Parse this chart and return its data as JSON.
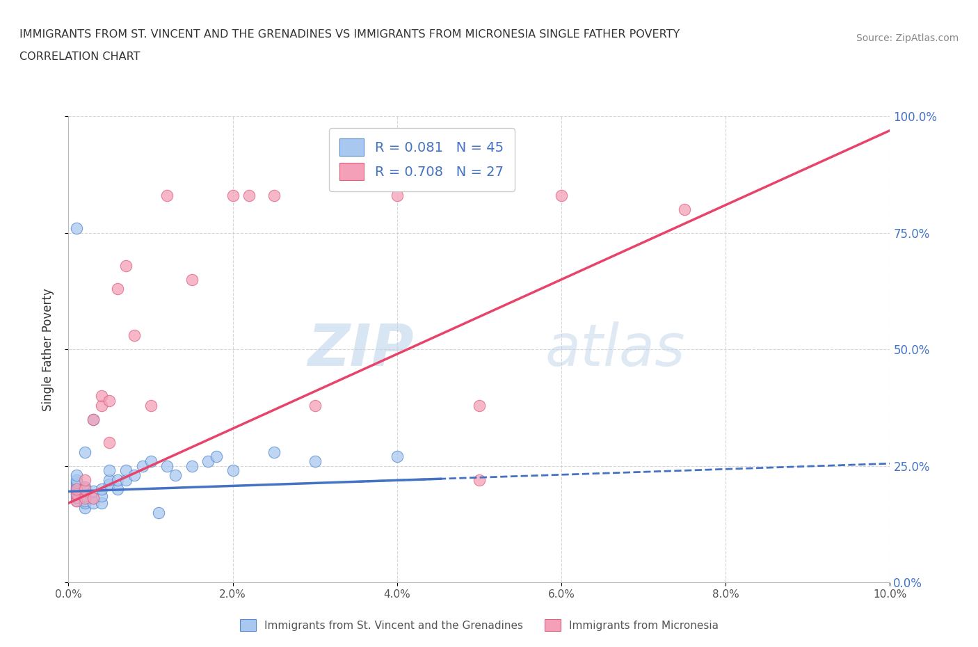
{
  "title_line1": "IMMIGRANTS FROM ST. VINCENT AND THE GRENADINES VS IMMIGRANTS FROM MICRONESIA SINGLE FATHER POVERTY",
  "title_line2": "CORRELATION CHART",
  "source_text": "Source: ZipAtlas.com",
  "ylabel": "Single Father Poverty",
  "watermark_zip": "ZIP",
  "watermark_atlas": "atlas",
  "xlim": [
    0.0,
    0.1
  ],
  "ylim": [
    0.0,
    1.0
  ],
  "xticks": [
    0.0,
    0.02,
    0.04,
    0.06,
    0.08,
    0.1
  ],
  "xtick_labels": [
    "0.0%",
    "2.0%",
    "4.0%",
    "6.0%",
    "8.0%",
    "10.0%"
  ],
  "yticks": [
    0.0,
    0.25,
    0.5,
    0.75,
    1.0
  ],
  "ytick_labels": [
    "0.0%",
    "25.0%",
    "50.0%",
    "75.0%",
    "100.0%"
  ],
  "blue_fill": "#A8C8F0",
  "pink_fill": "#F4A0B8",
  "blue_edge": "#5588CC",
  "pink_edge": "#E06080",
  "blue_line_color": "#4472C4",
  "pink_line_color": "#E8436A",
  "R_blue": 0.081,
  "N_blue": 45,
  "R_pink": 0.708,
  "N_pink": 27,
  "legend_label_blue": "Immigrants from St. Vincent and the Grenadines",
  "legend_label_pink": "Immigrants from Micronesia",
  "blue_scatter_x": [
    0.001,
    0.001,
    0.001,
    0.001,
    0.001,
    0.001,
    0.001,
    0.001,
    0.001,
    0.001,
    0.002,
    0.002,
    0.002,
    0.002,
    0.002,
    0.002,
    0.002,
    0.003,
    0.003,
    0.003,
    0.003,
    0.004,
    0.004,
    0.004,
    0.005,
    0.005,
    0.005,
    0.006,
    0.006,
    0.007,
    0.007,
    0.008,
    0.009,
    0.01,
    0.011,
    0.012,
    0.013,
    0.015,
    0.017,
    0.018,
    0.02,
    0.025,
    0.03,
    0.04,
    0.001
  ],
  "blue_scatter_y": [
    0.175,
    0.182,
    0.19,
    0.195,
    0.2,
    0.205,
    0.21,
    0.215,
    0.22,
    0.23,
    0.16,
    0.17,
    0.175,
    0.185,
    0.195,
    0.205,
    0.28,
    0.17,
    0.18,
    0.195,
    0.35,
    0.17,
    0.185,
    0.2,
    0.21,
    0.22,
    0.24,
    0.2,
    0.22,
    0.22,
    0.24,
    0.23,
    0.25,
    0.26,
    0.15,
    0.25,
    0.23,
    0.25,
    0.26,
    0.27,
    0.24,
    0.28,
    0.26,
    0.27,
    0.76
  ],
  "pink_scatter_x": [
    0.001,
    0.001,
    0.001,
    0.002,
    0.002,
    0.002,
    0.003,
    0.003,
    0.004,
    0.004,
    0.005,
    0.005,
    0.006,
    0.007,
    0.008,
    0.01,
    0.012,
    0.015,
    0.02,
    0.022,
    0.025,
    0.03,
    0.04,
    0.05,
    0.06,
    0.075,
    0.05
  ],
  "pink_scatter_y": [
    0.175,
    0.19,
    0.2,
    0.18,
    0.2,
    0.22,
    0.18,
    0.35,
    0.38,
    0.4,
    0.3,
    0.39,
    0.63,
    0.68,
    0.53,
    0.38,
    0.83,
    0.65,
    0.83,
    0.83,
    0.83,
    0.38,
    0.83,
    0.38,
    0.83,
    0.8,
    0.22
  ],
  "background_color": "#FFFFFF",
  "grid_color": "#CCCCCC"
}
